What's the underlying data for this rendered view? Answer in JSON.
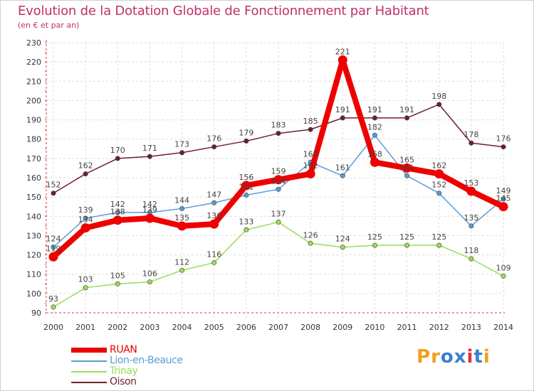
{
  "header": {
    "title": "Evolution de la Dotation Globale de Fonctionnement par Habitant",
    "subtitle": "(en € et par an)"
  },
  "colors": {
    "title": "#c0306b",
    "RUAN": "#ee0000",
    "Lion-en-Beauce": "#5b9bd5",
    "Trinay": "#99dd55",
    "Oison": "#6e1f2b"
  },
  "logo": {
    "text": "Proxiti",
    "letters": [
      "P",
      "r",
      "o",
      "x",
      "i",
      "t",
      "i"
    ],
    "colors": [
      "#f0a020",
      "#f0a020",
      "#3a7fd0",
      "#3a7fd0",
      "#e03040",
      "#3a7fd0",
      "#f0a020"
    ]
  },
  "chart_data": {
    "type": "line",
    "title": "Evolution de la Dotation Globale de Fonctionnement par Habitant",
    "subtitle": "(en € et par an)",
    "x": [
      2000,
      2001,
      2002,
      2003,
      2004,
      2005,
      2006,
      2007,
      2008,
      2009,
      2010,
      2011,
      2012,
      2013,
      2014
    ],
    "ylim": [
      90,
      230
    ],
    "yticks": [
      90,
      100,
      110,
      120,
      130,
      140,
      150,
      160,
      170,
      180,
      190,
      200,
      210,
      220,
      230
    ],
    "grid": true,
    "legend_position": "bottom-left",
    "series": [
      {
        "name": "RUAN",
        "color": "#ee0000",
        "values": [
          119,
          134,
          138,
          139,
          135,
          136,
          156,
          159,
          162,
          221,
          168,
          165,
          162,
          153,
          145
        ],
        "labels": [
          "119",
          "134",
          "138",
          "139",
          "135",
          "136",
          "156",
          "159",
          "162",
          "221",
          "168",
          "165",
          "162",
          "153",
          "145"
        ]
      },
      {
        "name": "Lion-en-Beauce",
        "color": "#5b9bd5",
        "values": [
          124,
          139,
          142,
          142,
          144,
          147,
          151,
          154,
          168,
          161,
          182,
          161,
          152,
          135,
          149
        ],
        "labels": [
          "124",
          "139",
          "142",
          "142",
          "144",
          "147",
          "151",
          "154",
          "168",
          "161",
          "182",
          "161",
          "152",
          "135",
          "149"
        ]
      },
      {
        "name": "Trinay",
        "color": "#99dd55",
        "values": [
          93,
          103,
          105,
          106,
          112,
          116,
          133,
          137,
          126,
          124,
          125,
          125,
          125,
          118,
          109
        ],
        "labels": [
          "93",
          "103",
          "105",
          "106",
          "112",
          "116",
          "133",
          "137",
          "126",
          "124",
          "125",
          "125",
          "125",
          "118",
          "109"
        ]
      },
      {
        "name": "Oison",
        "color": "#6e1f2b",
        "values": [
          152,
          162,
          170,
          171,
          173,
          176,
          179,
          183,
          185,
          191,
          191,
          191,
          198,
          178,
          176
        ],
        "labels": [
          "152",
          "162",
          "170",
          "171",
          "173",
          "176",
          "179",
          "183",
          "185",
          "191",
          "191",
          "191",
          "198",
          "178",
          "176"
        ]
      }
    ]
  }
}
